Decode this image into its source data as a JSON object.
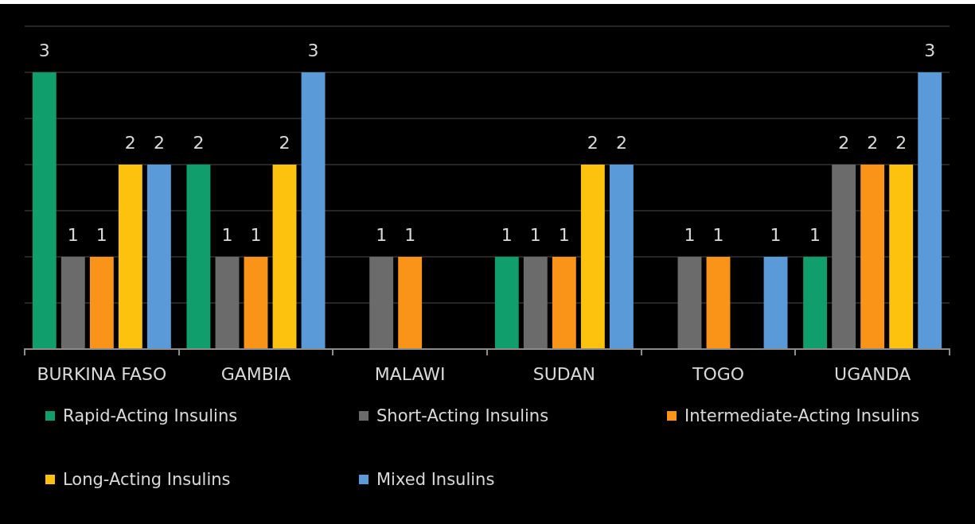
{
  "chart_data": {
    "type": "bar",
    "categories": [
      "BURKINA FASO",
      "GAMBIA",
      "MALAWI",
      "SUDAN",
      "TOGO",
      "UGANDA"
    ],
    "series": [
      {
        "name": "Rapid-Acting Insulins",
        "color": "#109e6c",
        "values": [
          3,
          2,
          null,
          1,
          null,
          1
        ]
      },
      {
        "name": "Short-Acting Insulins",
        "color": "#6b6b6b",
        "values": [
          1,
          1,
          1,
          1,
          1,
          2
        ]
      },
      {
        "name": "Intermediate-Acting Insulins",
        "color": "#fa9419",
        "values": [
          1,
          1,
          1,
          1,
          1,
          2
        ]
      },
      {
        "name": "Long-Acting Insulins",
        "color": "#fcc20d",
        "values": [
          2,
          2,
          null,
          2,
          null,
          2
        ]
      },
      {
        "name": "Mixed Insulins",
        "color": "#5a9ad9",
        "values": [
          2,
          3,
          null,
          2,
          1,
          3
        ]
      }
    ],
    "ylim": [
      0,
      3.5
    ],
    "yticks": [
      {
        "value": 0,
        "label": null
      },
      {
        "value": 0.5,
        "label": null
      },
      {
        "value": 1,
        "label": null
      },
      {
        "value": 1.5,
        "label": null
      },
      {
        "value": 2,
        "label": null
      },
      {
        "value": 2.5,
        "label": null
      },
      {
        "value": 3,
        "label": null
      },
      {
        "value": 3.5,
        "label": null
      }
    ],
    "tick_labels": "x",
    "grid": "y",
    "legend": "bottom",
    "data_labels": true
  }
}
